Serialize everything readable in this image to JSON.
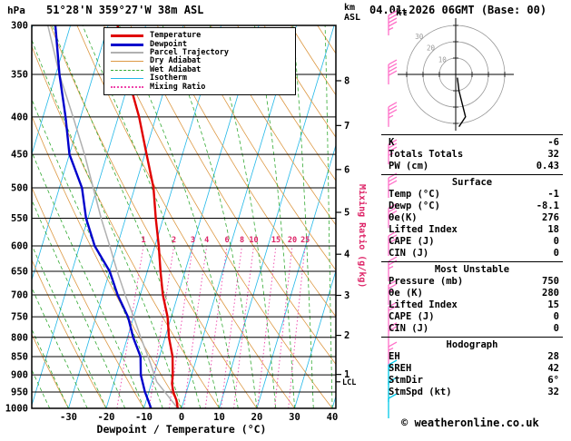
{
  "header": {
    "pressure_unit": "hPa",
    "title": "51°28'N 359°27'W 38m ASL",
    "altitude_unit_line1": "km",
    "altitude_unit_line2": "ASL",
    "datetime": "04.01.2026 06GMT (Base: 00)"
  },
  "chart_data": {
    "type": "skewt-log-p-sounding",
    "xlabel": "Dewpoint / Temperature (°C)",
    "pressure_axis_unit": "hPa",
    "p_range": [
      300,
      1000
    ],
    "pressure_ticks": [
      300,
      350,
      400,
      450,
      500,
      550,
      600,
      650,
      700,
      750,
      800,
      850,
      900,
      950,
      1000
    ],
    "temp_ticks": [
      -30,
      -20,
      -10,
      0,
      10,
      20,
      30,
      40
    ],
    "km_ticks": [
      {
        "km": 1,
        "p": 899
      },
      {
        "km": 2,
        "p": 795
      },
      {
        "km": 3,
        "p": 701
      },
      {
        "km": 4,
        "p": 616
      },
      {
        "km": 5,
        "p": 540
      },
      {
        "km": 6,
        "p": 472
      },
      {
        "km": 7,
        "p": 411
      },
      {
        "km": 8,
        "p": 357
      }
    ],
    "lcl_label": "LCL",
    "lcl_pressure": 920,
    "mixing_ratio_axis_label": "Mixing Ratio (g/kg)",
    "mixing_ratio_values": [
      1,
      2,
      3,
      4,
      6,
      8,
      10,
      15,
      20,
      25
    ],
    "temperature_profile": [
      [
        1000,
        -1
      ],
      [
        975,
        -2
      ],
      [
        950,
        -3.5
      ],
      [
        925,
        -4.5
      ],
      [
        900,
        -5
      ],
      [
        850,
        -6.5
      ],
      [
        800,
        -9
      ],
      [
        750,
        -11
      ],
      [
        700,
        -14
      ],
      [
        650,
        -16.5
      ],
      [
        600,
        -19
      ],
      [
        550,
        -22
      ],
      [
        500,
        -25
      ],
      [
        450,
        -29.5
      ],
      [
        400,
        -34.5
      ],
      [
        350,
        -41
      ],
      [
        300,
        -47.5
      ]
    ],
    "dewpoint_profile": [
      [
        1000,
        -8.1
      ],
      [
        975,
        -9.5
      ],
      [
        950,
        -11
      ],
      [
        900,
        -13.5
      ],
      [
        850,
        -15
      ],
      [
        800,
        -18.5
      ],
      [
        750,
        -21.5
      ],
      [
        700,
        -26
      ],
      [
        650,
        -30
      ],
      [
        600,
        -36
      ],
      [
        550,
        -40.5
      ],
      [
        500,
        -44
      ],
      [
        450,
        -50
      ],
      [
        400,
        -54
      ],
      [
        350,
        -59
      ],
      [
        300,
        -64
      ]
    ],
    "parcel_profile": [
      [
        1000,
        -1
      ],
      [
        920,
        -8.7
      ],
      [
        850,
        -13
      ],
      [
        800,
        -16.5
      ],
      [
        750,
        -20
      ],
      [
        700,
        -24
      ],
      [
        650,
        -28
      ],
      [
        600,
        -32
      ],
      [
        550,
        -36.5
      ],
      [
        500,
        -41
      ],
      [
        450,
        -46
      ],
      [
        400,
        -52
      ],
      [
        350,
        -59
      ],
      [
        300,
        -66
      ]
    ],
    "wind_barbs": [
      {
        "p": 300,
        "kt": 45,
        "band": "upper"
      },
      {
        "p": 350,
        "kt": 40,
        "band": "upper"
      },
      {
        "p": 400,
        "kt": 35,
        "band": "upper"
      },
      {
        "p": 450,
        "kt": 35,
        "band": "upper"
      },
      {
        "p": 500,
        "kt": 30,
        "band": "upper"
      },
      {
        "p": 550,
        "kt": 30,
        "band": "upper"
      },
      {
        "p": 600,
        "kt": 30,
        "band": "upper"
      },
      {
        "p": 650,
        "kt": 25,
        "band": "upper"
      },
      {
        "p": 700,
        "kt": 25,
        "band": "upper"
      },
      {
        "p": 750,
        "kt": 20,
        "band": "upper"
      },
      {
        "p": 800,
        "kt": 20,
        "band": "upper"
      },
      {
        "p": 850,
        "kt": 15,
        "band": "upper"
      },
      {
        "p": 900,
        "kt": 15,
        "band": "lower"
      },
      {
        "p": 950,
        "kt": 10,
        "band": "lower"
      },
      {
        "p": 1000,
        "kt": 10,
        "band": "lower"
      }
    ],
    "legend": [
      {
        "label": "Temperature",
        "color": "#e00000",
        "style": "solid",
        "weight": 3
      },
      {
        "label": "Dewpoint",
        "color": "#0000cc",
        "style": "solid",
        "weight": 3
      },
      {
        "label": "Parcel Trajectory",
        "color": "#b0b0b0",
        "style": "solid",
        "weight": 2
      },
      {
        "label": "Dry Adiabat",
        "color": "#dd9944",
        "style": "solid",
        "weight": 1
      },
      {
        "label": "Wet Adiabat",
        "color": "#33aa33",
        "style": "dashed",
        "weight": 1
      },
      {
        "label": "Isotherm",
        "color": "#22b8e8",
        "style": "solid",
        "weight": 1
      },
      {
        "label": "Mixing Ratio",
        "color": "#ee44aa",
        "style": "dotted",
        "weight": 2
      }
    ],
    "hodograph": {
      "unit_label": "kt",
      "rings_kt": [
        10,
        20,
        30
      ],
      "trace_kt": [
        [
          1,
          -2
        ],
        [
          2,
          -10
        ],
        [
          4,
          -18
        ],
        [
          6,
          -26
        ],
        [
          2,
          -32
        ]
      ]
    },
    "colors": {
      "temperature": "#e00000",
      "dewpoint": "#0000cc",
      "parcel": "#b0b0b0",
      "dry_adiabat": "#dd9944",
      "wet_adiabat": "#33aa33",
      "isotherm": "#22b8e8",
      "mixing_ratio": "#ee44aa",
      "mixing_label": "#dd2266",
      "barb_upper": "#ff70c8",
      "barb_lower": "#00c8e8"
    }
  },
  "stats_panel": {
    "top_rows": [
      [
        "K",
        "-6"
      ],
      [
        "Totals Totals",
        "32"
      ],
      [
        "PW (cm)",
        "0.43"
      ]
    ],
    "sections": [
      {
        "title": "Surface",
        "rows": [
          [
            "Temp (°C)",
            "-1"
          ],
          [
            "Dewp (°C)",
            "-8.1"
          ],
          [
            "θe(K)",
            "276"
          ],
          [
            "Lifted Index",
            "18"
          ],
          [
            "CAPE (J)",
            "0"
          ],
          [
            "CIN (J)",
            "0"
          ]
        ]
      },
      {
        "title": "Most Unstable",
        "rows": [
          [
            "Pressure (mb)",
            "750"
          ],
          [
            "θe (K)",
            "280"
          ],
          [
            "Lifted Index",
            "15"
          ],
          [
            "CAPE (J)",
            "0"
          ],
          [
            "CIN (J)",
            "0"
          ]
        ]
      },
      {
        "title": "Hodograph",
        "rows": [
          [
            "EH",
            "28"
          ],
          [
            "SREH",
            "42"
          ],
          [
            "StmDir",
            "6°"
          ],
          [
            "StmSpd (kt)",
            "32"
          ]
        ]
      }
    ]
  },
  "footer": {
    "copyright": "© weatheronline.co.uk"
  }
}
